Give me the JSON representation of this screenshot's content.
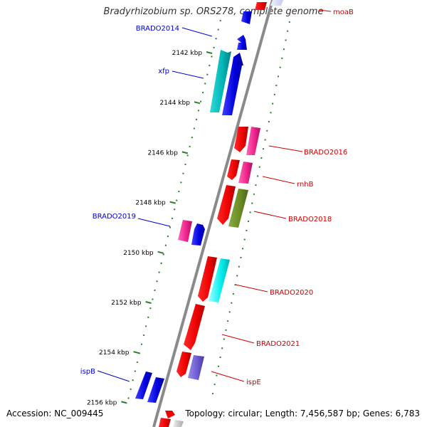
{
  "header": {
    "title": "Bradyrhizobium sp. ORS278, complete genome"
  },
  "footer": {
    "accession": "Accession: NC_009445",
    "topology": "Topology: circular; Length: 7,456,587 bp; Genes: 6,783"
  },
  "colors": {
    "backbone": "#8a8a8a",
    "tick": "#2a7f2a",
    "left_label": "#0000cc",
    "right_label": "#cc0000"
  },
  "scale_kbp": [
    {
      "label": "2142 kbp",
      "kbp": 2142
    },
    {
      "label": "2144 kbp",
      "kbp": 2144
    },
    {
      "label": "2146 kbp",
      "kbp": 2146
    },
    {
      "label": "2148 kbp",
      "kbp": 2148
    },
    {
      "label": "2150 kbp",
      "kbp": 2150
    },
    {
      "label": "2152 kbp",
      "kbp": 2152
    },
    {
      "label": "2154 kbp",
      "kbp": 2154
    },
    {
      "label": "2156 kbp",
      "kbp": 2156
    }
  ],
  "genes": [
    {
      "label": "moaB",
      "side": "right",
      "color": "#ff3b3b"
    },
    {
      "label": "BRADO2014",
      "side": "left",
      "color": "#0000e6"
    },
    {
      "label": "xfp",
      "side": "left",
      "color": "#00b3b3"
    },
    {
      "label": "BRADO2016",
      "side": "right",
      "color": "#ee2288"
    },
    {
      "label": "rnhB",
      "side": "right",
      "color": "#ee2288"
    },
    {
      "label": "BRADO2018",
      "side": "right",
      "color": "#668822"
    },
    {
      "label": "BRADO2019",
      "side": "left",
      "color": "#ee2288"
    },
    {
      "label": "BRADO2020",
      "side": "right",
      "color": "#00dddd"
    },
    {
      "label": "BRADO2021",
      "side": "right",
      "color": "#ee0000"
    },
    {
      "label": "ispE",
      "side": "right",
      "color": "#6a5acd"
    },
    {
      "label": "ispB",
      "side": "left",
      "color": "#0000e6"
    }
  ]
}
